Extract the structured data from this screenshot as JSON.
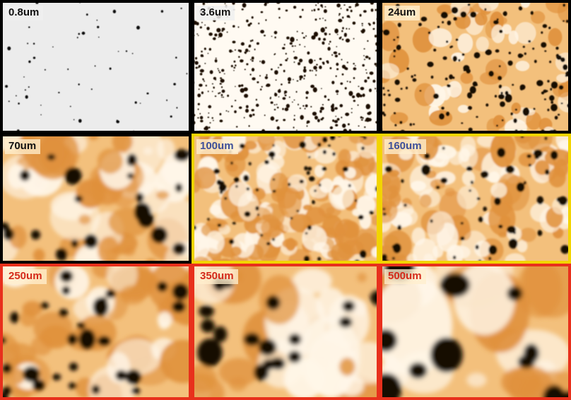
{
  "panels": [
    {
      "id": "p1",
      "label": "0.8um",
      "label_color": "#111111",
      "border": "#000000",
      "palette": "gray",
      "blur": 0.4,
      "seed": 11,
      "blobs": 60,
      "bmin": 0.8,
      "bmax": 2.6,
      "blotches": 0
    },
    {
      "id": "p2",
      "label": "3.6um",
      "label_color": "#111111",
      "border": "#000000",
      "palette": "orange-hot",
      "blur": 0.5,
      "seed": 23,
      "blobs": 520,
      "bmin": 0.9,
      "bmax": 3.2,
      "blotches": 0
    },
    {
      "id": "p3",
      "label": "24um",
      "label_color": "#111111",
      "border": "#000000",
      "palette": "orange",
      "blur": 0.9,
      "seed": 37,
      "blobs": 160,
      "bmin": 1.5,
      "bmax": 5.0,
      "blotches": 60
    },
    {
      "id": "p4",
      "label": "70um",
      "label_color": "#111111",
      "border": "#000000",
      "palette": "orange",
      "blur": 2.6,
      "seed": 41,
      "blobs": 22,
      "bmin": 5,
      "bmax": 14,
      "blotches": 50
    },
    {
      "id": "p5",
      "label": "100um",
      "label_color": "#3d4f99",
      "border": "#f2d400",
      "palette": "orange",
      "blur": 1.2,
      "seed": 53,
      "blobs": 70,
      "bmin": 1.8,
      "bmax": 5.5,
      "blotches": 160
    },
    {
      "id": "p6",
      "label": "160um",
      "label_color": "#3d4f99",
      "border": "#f2d400",
      "palette": "orange",
      "blur": 1.4,
      "seed": 67,
      "blobs": 55,
      "bmin": 2,
      "bmax": 6.5,
      "blotches": 110
    },
    {
      "id": "p7",
      "label": "250um",
      "label_color": "#d42a1a",
      "border": "#e8301c",
      "palette": "orange",
      "blur": 3.0,
      "seed": 79,
      "blobs": 28,
      "bmin": 6,
      "bmax": 13,
      "blotches": 45
    },
    {
      "id": "p8",
      "label": "350um",
      "label_color": "#d42a1a",
      "border": "#e8301c",
      "palette": "orange",
      "blur": 3.2,
      "seed": 83,
      "blobs": 18,
      "bmin": 9,
      "bmax": 18,
      "blotches": 30
    },
    {
      "id": "p9",
      "label": "500um",
      "label_color": "#d42a1a",
      "border": "#e8301c",
      "palette": "orange",
      "blur": 3.4,
      "seed": 97,
      "blobs": 12,
      "bmin": 11,
      "bmax": 24,
      "blotches": 22
    }
  ]
}
